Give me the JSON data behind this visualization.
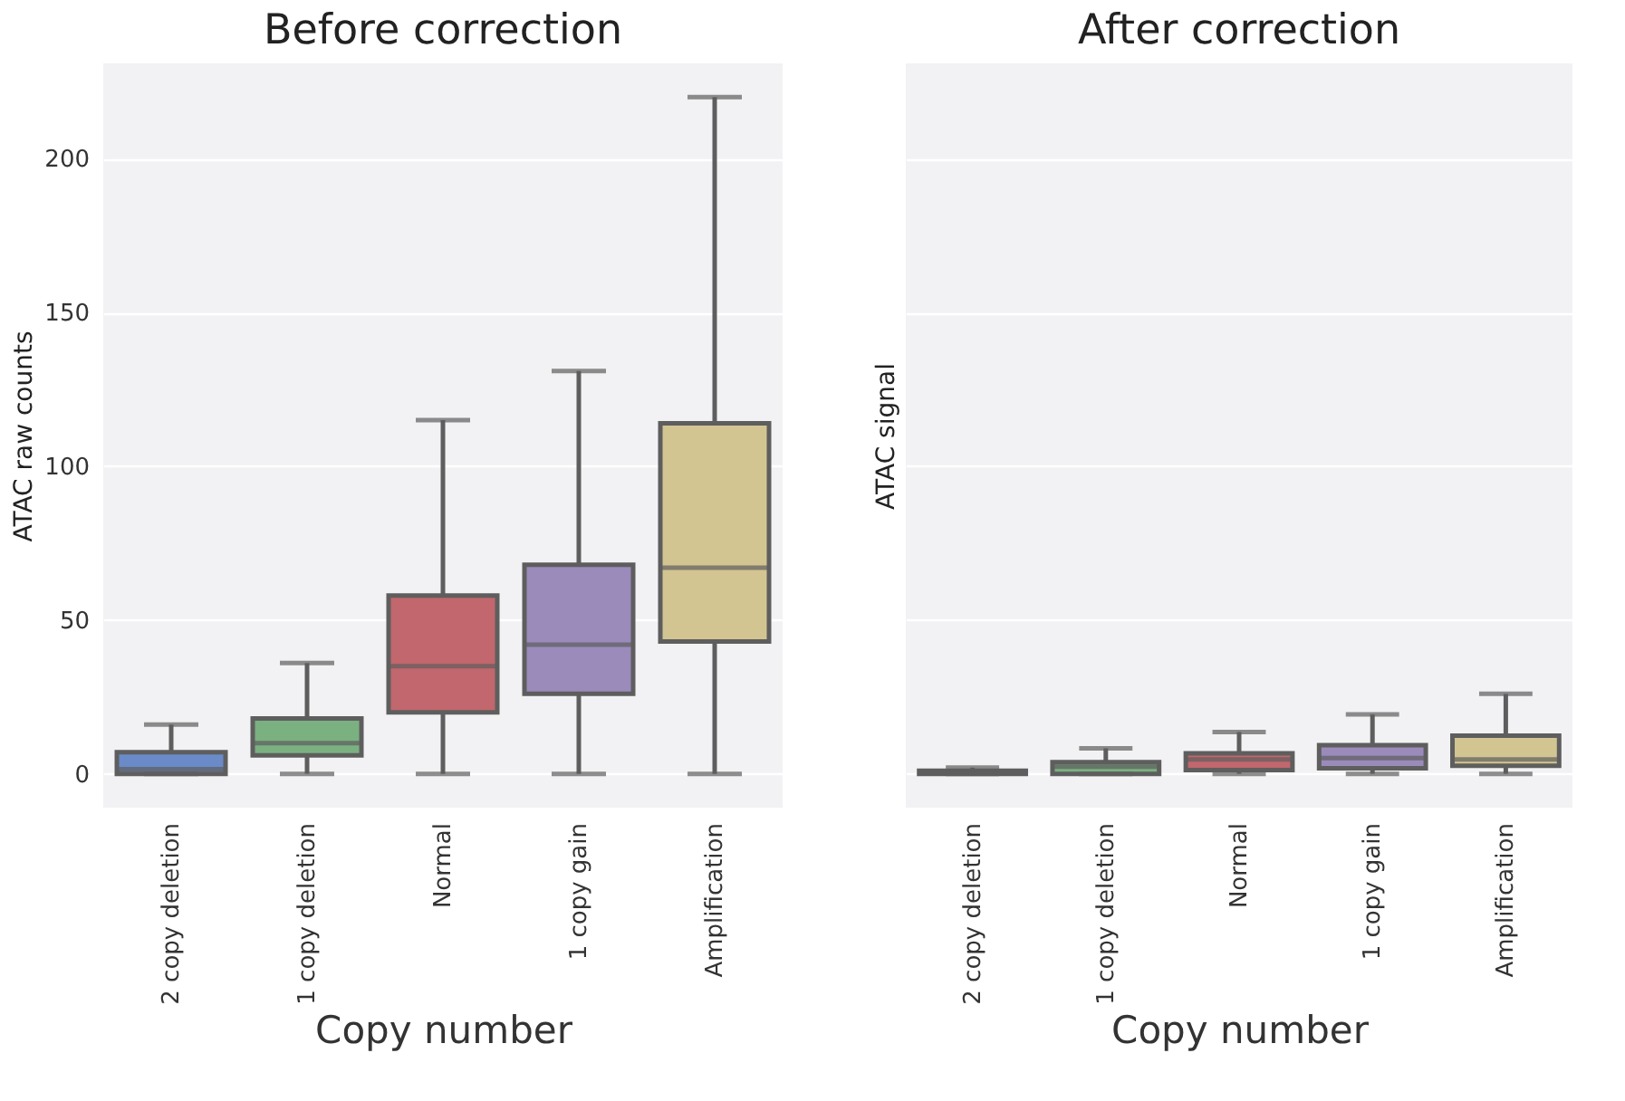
{
  "chart_data": [
    {
      "type": "box",
      "title": "Before correction",
      "xlabel": "Copy number",
      "ylabel": "ATAC raw counts",
      "categories": [
        "2 copy deletion",
        "1 copy deletion",
        "Normal",
        "1 copy gain",
        "Amplification"
      ],
      "colors": [
        "#6a8bc7",
        "#7bb081",
        "#c1676d",
        "#9a8bbb",
        "#d3c592"
      ],
      "boxes": [
        {
          "low": 0,
          "q1": 0,
          "median": 1.5,
          "q3": 7,
          "high": 16
        },
        {
          "low": 0,
          "q1": 6,
          "median": 10,
          "q3": 18,
          "high": 36
        },
        {
          "low": 0,
          "q1": 20,
          "median": 35,
          "q3": 58,
          "high": 115
        },
        {
          "low": 0,
          "q1": 26,
          "median": 42,
          "q3": 68,
          "high": 131
        },
        {
          "low": 0,
          "q1": 43,
          "median": 67,
          "q3": 114,
          "high": 220
        }
      ],
      "ylim": [
        -11,
        231
      ],
      "yticks": [
        0,
        50,
        100,
        150,
        200
      ],
      "grid": "y"
    },
    {
      "type": "box",
      "title": "After correction",
      "xlabel": "Copy number",
      "ylabel": "ATAC signal",
      "categories": [
        "2 copy deletion",
        "1 copy deletion",
        "Normal",
        "1 copy gain",
        "Amplification"
      ],
      "colors": [
        "#6a8bc7",
        "#7bb081",
        "#c1676d",
        "#9a8bbb",
        "#d3c592"
      ],
      "boxes": [
        {
          "low": 0,
          "q1": 0,
          "median": 0.3,
          "q3": 1,
          "high": 2
        },
        {
          "low": 0,
          "q1": 0,
          "median": 2.3,
          "q3": 3.8,
          "high": 8.3
        },
        {
          "low": 0,
          "q1": 1.2,
          "median": 4.7,
          "q3": 6.7,
          "high": 13.6
        },
        {
          "low": 0,
          "q1": 1.8,
          "median": 5.1,
          "q3": 9.3,
          "high": 19.3
        },
        {
          "low": 0,
          "q1": 2.6,
          "median": 4.7,
          "q3": 12.4,
          "high": 26
        }
      ],
      "ylim": [
        -11,
        231
      ],
      "yticks": [
        0,
        50,
        100,
        150,
        200
      ],
      "grid": "y",
      "tick_labels": "x"
    }
  ]
}
